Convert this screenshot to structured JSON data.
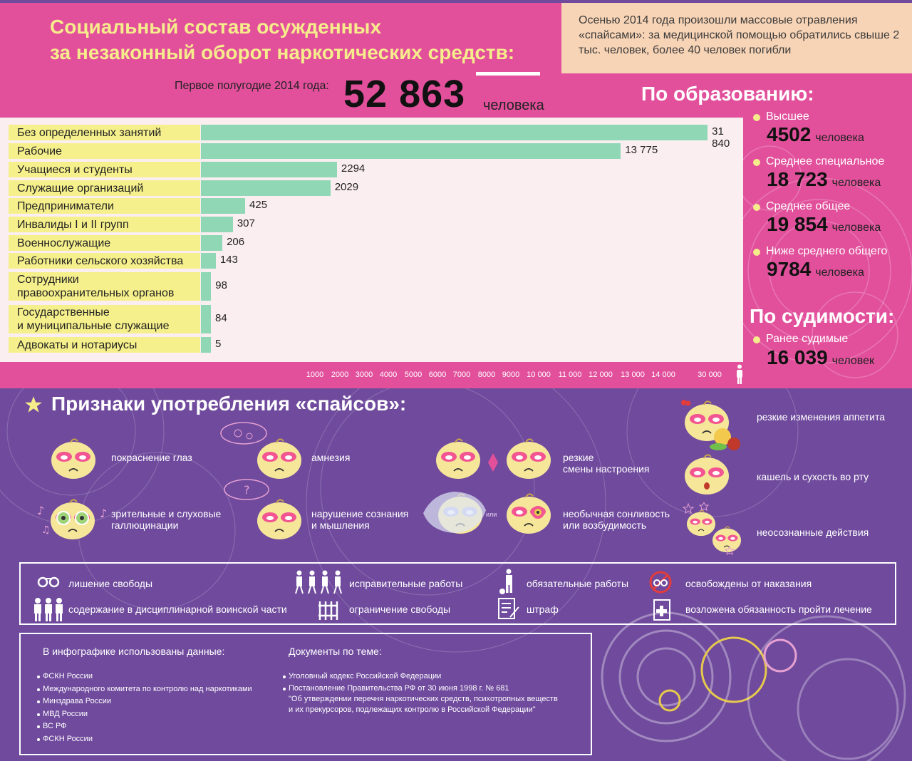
{
  "title_line1": "Социальный состав осужденных",
  "title_line2": "за незаконный оборот наркотических средств:",
  "note": "Осенью 2014 года произошли массовые отравления «спайсами»: за медицинской помощью обратились свыше 2 тыс. человек, более 40 человек погибли",
  "period_label": "Первое полугодие 2014 года:",
  "total": "52 863",
  "total_unit": "человека",
  "colors": {
    "pink": "#e2509c",
    "purple": "#6f4a9d",
    "yellow": "#f6ec8c",
    "mint": "#8fd7b5",
    "peach": "#f8d4b6"
  },
  "chart_data": {
    "type": "bar",
    "orientation": "horizontal",
    "categories": [
      "Без определенных занятий",
      "Рабочие",
      "Учащиеся и студенты",
      "Служащие организаций",
      "Предприниматели",
      "Инвалиды I и II групп",
      "Военнослужащие",
      "Работники сельского хозяйства",
      "Сотрудники правоохранительных органов",
      "Государственные и муниципальные служащие",
      "Адвокаты и нотариусы"
    ],
    "category_lines": [
      [
        "Без определенных занятий"
      ],
      [
        "Рабочие"
      ],
      [
        "Учащиеся и студенты"
      ],
      [
        "Служащие организаций"
      ],
      [
        "Предприниматели"
      ],
      [
        "Инвалиды I и II групп"
      ],
      [
        "Военнослужащие"
      ],
      [
        "Работники сельского хозяйства"
      ],
      [
        "Сотрудники",
        "правоохранительных органов"
      ],
      [
        "Государственные",
        "и муниципальные служащие"
      ],
      [
        "Адвокаты и нотариусы"
      ]
    ],
    "values": [
      31840,
      13775,
      2294,
      2029,
      425,
      307,
      206,
      143,
      98,
      84,
      5
    ],
    "value_labels": [
      "31 840",
      "13 775",
      "2294",
      "2029",
      "425",
      "307",
      "206",
      "143",
      "98",
      "84",
      "5"
    ],
    "x_ticks": [
      "1000",
      "2000",
      "3000",
      "4000",
      "5000",
      "6000",
      "7000",
      "8000",
      "9000",
      "10 000",
      "11 000",
      "12 000",
      "13 000",
      "14 000",
      "30 000"
    ],
    "scale": "broken axis"
  },
  "education": {
    "heading": "По образованию:",
    "items": [
      {
        "label": "Высшее",
        "value": "4502",
        "unit": "человека"
      },
      {
        "label": "Среднее специальное",
        "value": "18 723",
        "unit": "человека"
      },
      {
        "label": "Среднее общее",
        "value": "19 854",
        "unit": "человека"
      },
      {
        "label": "Ниже среднего общего",
        "value": "9784",
        "unit": "человека"
      }
    ]
  },
  "criminal": {
    "heading": "По судимости:",
    "label": "Ранее судимые",
    "value": "16 039",
    "unit": "человек"
  },
  "signs": {
    "heading": "Признаки употребления «спайсов»:",
    "items": [
      {
        "lines": [
          "покраснение глаз"
        ],
        "icon": "face-red-eyes-icon"
      },
      {
        "lines": [
          "амнезия"
        ],
        "icon": "face-amnesia-icon"
      },
      {
        "lines": [
          "резкие",
          "смены настроения"
        ],
        "icon": "face-mood-swings-icon"
      },
      {
        "lines": [
          "резкие изменения аппетита"
        ],
        "icon": "face-appetite-icon"
      },
      {
        "lines": [
          "кашель и сухость во рту"
        ],
        "icon": "face-cough-icon"
      },
      {
        "lines": [
          "зрительные и слуховые",
          "галлюцинации"
        ],
        "icon": "face-hallucinations-icon"
      },
      {
        "lines": [
          "нарушение сознания",
          "и мышления"
        ],
        "icon": "face-confusion-icon"
      },
      {
        "lines": [
          "необычная сонливость",
          "или возбудимость"
        ],
        "icon": "face-sleepy-icon"
      },
      {
        "lines": [
          "неосознанные действия"
        ],
        "icon": "face-dizzy-icon"
      }
    ],
    "ili": "или"
  },
  "penalties": [
    {
      "label": "лишение свободы",
      "icon": "handcuffs-icon"
    },
    {
      "label": "исправительные работы",
      "icon": "workers-icon"
    },
    {
      "label": "обязательные работы",
      "icon": "ball-and-chain-icon"
    },
    {
      "label": "освобождены от наказания",
      "icon": "no-handcuffs-icon"
    },
    {
      "label": "содержание в дисциплинарной воинской части",
      "icon": "soldiers-icon"
    },
    {
      "label": "ограничение свободы",
      "icon": "bars-icon"
    },
    {
      "label": "штраф",
      "icon": "document-pen-icon"
    },
    {
      "label": "возложена обязанность пройти лечение",
      "icon": "medical-document-icon"
    }
  ],
  "sources": {
    "heading": "В инфографике использованы данные:",
    "items": [
      "ФСКН России",
      "Международного комитета по контролю над наркотиками",
      "Минздрава России",
      "МВД России",
      "ВС РФ",
      "ФСКН России"
    ]
  },
  "documents": {
    "heading": "Документы по теме:",
    "items": [
      [
        "Уголовный кодекс Российской Федерации"
      ],
      [
        "Постановление Правительства РФ от 30 июня 1998 г. № 681",
        "\"Об утверждении перечня наркотических средств, психотропных веществ",
        "и их прекурсоров, подлежащих контролю в Российской Федерации\""
      ]
    ]
  }
}
